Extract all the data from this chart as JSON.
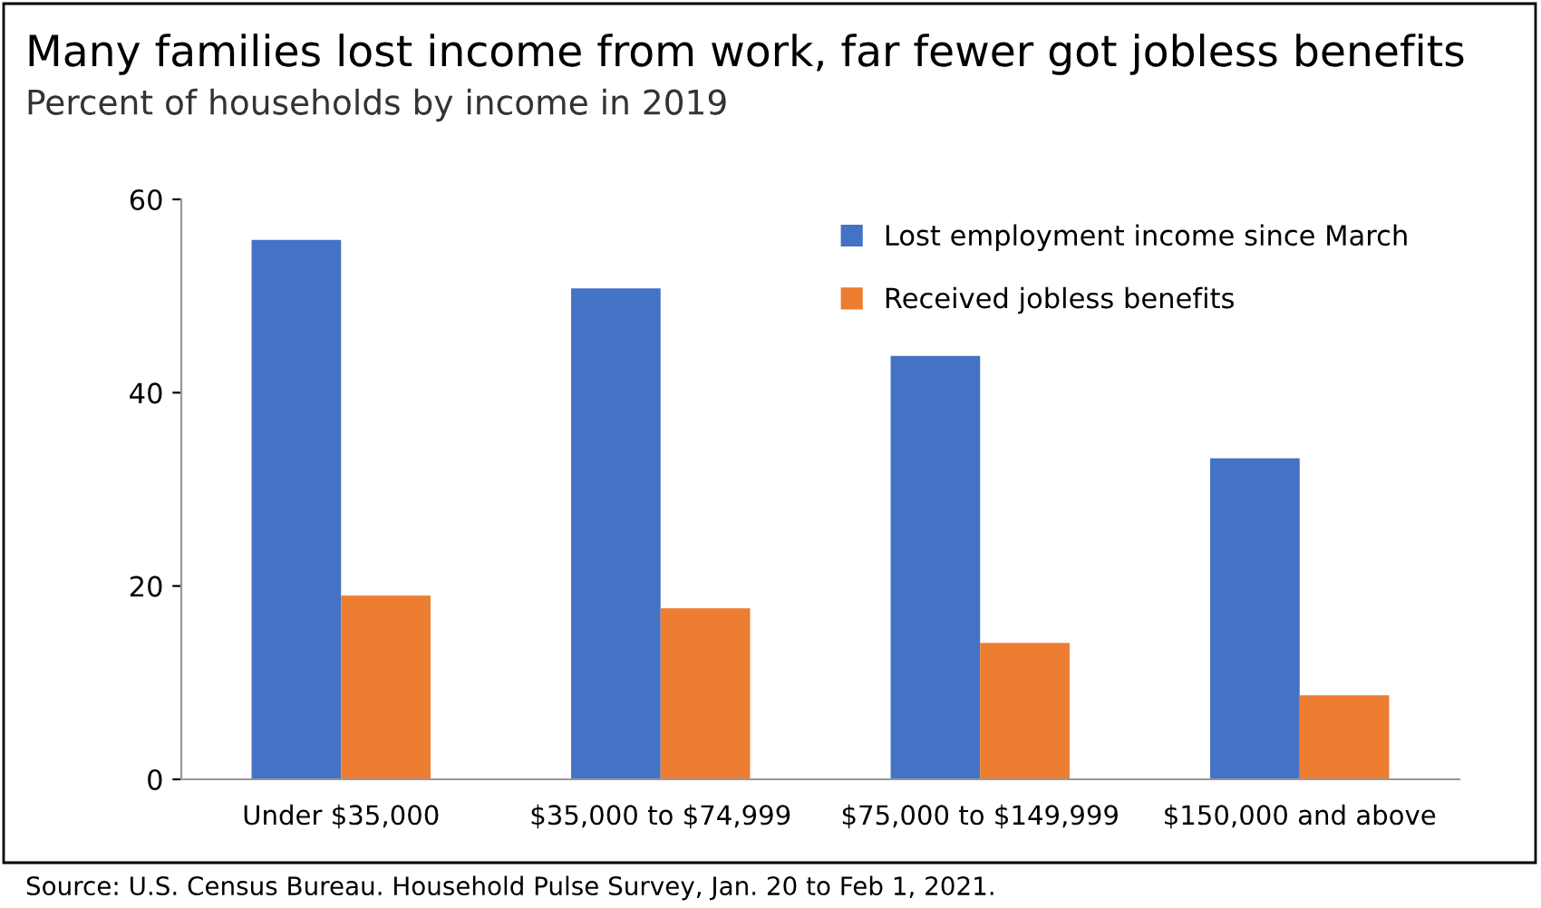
{
  "chart_data": {
    "type": "bar",
    "title": "Many families lost income from work, far fewer got jobless benefits",
    "subtitle": "Percent of households by income in 2019",
    "categories": [
      "Under $35,000",
      "$35,000 to $74,999",
      "$75,000 to $149,999",
      "$150,000 and above"
    ],
    "series": [
      {
        "name": "Lost employment income since March",
        "color": "#4472c4",
        "values": [
          55.8,
          50.8,
          43.8,
          33.2
        ]
      },
      {
        "name": "Received jobless benefits",
        "color": "#ed7d31",
        "values": [
          19.0,
          17.7,
          14.1,
          8.7
        ]
      }
    ],
    "ylim": [
      0,
      60
    ],
    "yticks": [
      0,
      20,
      40,
      60
    ],
    "grid": false,
    "legend": "top right",
    "annotations": [
      "Source: U.S. Census Bureau. Household Pulse Survey, Jan. 20 to Feb 1, 2021."
    ]
  }
}
